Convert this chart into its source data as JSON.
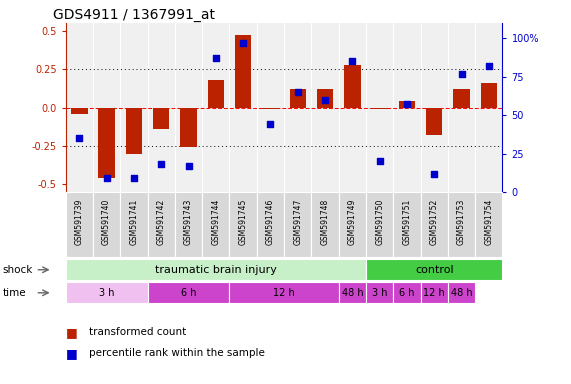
{
  "title": "GDS4911 / 1367991_at",
  "samples": [
    "GSM591739",
    "GSM591740",
    "GSM591741",
    "GSM591742",
    "GSM591743",
    "GSM591744",
    "GSM591745",
    "GSM591746",
    "GSM591747",
    "GSM591748",
    "GSM591749",
    "GSM591750",
    "GSM591751",
    "GSM591752",
    "GSM591753",
    "GSM591754"
  ],
  "bar_values": [
    -0.04,
    -0.46,
    -0.3,
    -0.14,
    -0.26,
    0.18,
    0.47,
    -0.01,
    0.12,
    0.12,
    0.28,
    -0.01,
    0.04,
    -0.18,
    0.12,
    0.16
  ],
  "dot_values": [
    35,
    9,
    9,
    18,
    17,
    87,
    97,
    44,
    65,
    60,
    85,
    20,
    57,
    12,
    77,
    82
  ],
  "bar_color": "#bb2200",
  "dot_color": "#0000cc",
  "ylim_left": [
    -0.55,
    0.55
  ],
  "ylim_right": [
    0,
    110
  ],
  "yticks_left": [
    -0.5,
    -0.25,
    0.0,
    0.25,
    0.5
  ],
  "yticks_right": [
    0,
    25,
    50,
    75,
    100
  ],
  "ytick_labels_right": [
    "0",
    "25",
    "50",
    "75",
    "100%"
  ],
  "hlines": [
    -0.25,
    0.0,
    0.25
  ],
  "hline_styles": [
    "dotted",
    "dashed",
    "dotted"
  ],
  "tbi_color": "#c8f0c8",
  "ctrl_color": "#44cc44",
  "time_light_color": "#f0c0f0",
  "time_dark_color": "#cc44cc",
  "legend_items": [
    "transformed count",
    "percentile rank within the sample"
  ],
  "bg_color": "#f0f0f0"
}
